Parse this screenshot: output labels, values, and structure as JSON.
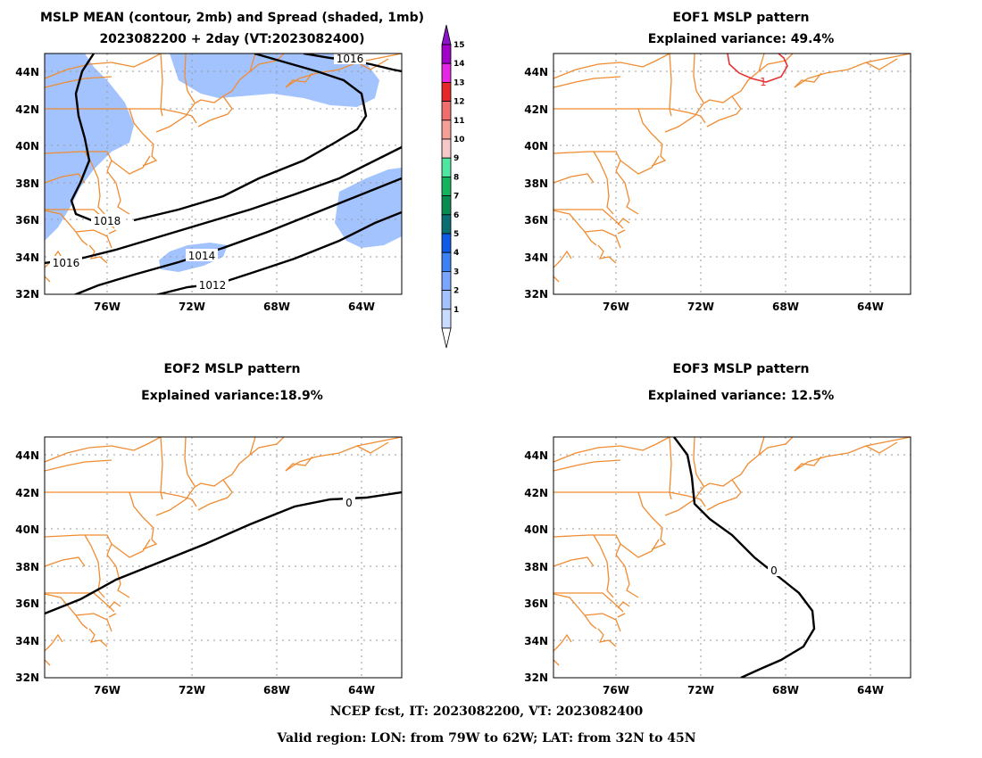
{
  "panels": [
    {
      "id": "p1",
      "title1": "MSLP MEAN (contour, 2mb) and Spread (shaded, 1mb)",
      "title2": "2023082200 + 2day (VT:2023082400)"
    },
    {
      "id": "p2",
      "title1": "EOF1 MSLP pattern",
      "title2": "Explained variance: 49.4%"
    },
    {
      "id": "p3",
      "title1": "EOF2 MSLP pattern",
      "title2": "Explained variance:18.9%"
    },
    {
      "id": "p4",
      "title1": "EOF3 MSLP pattern",
      "title2": "Explained variance: 12.5%"
    }
  ],
  "axes": {
    "lat_labels": [
      "32N",
      "34N",
      "36N",
      "38N",
      "40N",
      "42N",
      "44N"
    ],
    "lon_labels": [
      "76W",
      "72W",
      "68W",
      "64W"
    ]
  },
  "colorbar": {
    "labels": [
      "1",
      "2",
      "3",
      "4",
      "5",
      "6",
      "7",
      "8",
      "9",
      "10",
      "11",
      "12",
      "13",
      "14",
      "15"
    ],
    "colors": [
      "#c9dcff",
      "#a3c3ff",
      "#7ba6ff",
      "#3c82f5",
      "#0f5ae6",
      "#0a6e73",
      "#0a8c50",
      "#14b45f",
      "#50e6a0",
      "#f6c8c8",
      "#f5a096",
      "#f06e6e",
      "#e62828",
      "#e626e6",
      "#a000c8"
    ],
    "bottom_color": "#ffffff",
    "top_color": "#8c14c8"
  },
  "contour_labels": {
    "p1": [
      "1016",
      "1018",
      "1016",
      "1014",
      "1012"
    ],
    "p2": [
      "1"
    ],
    "p3": [
      "0"
    ],
    "p4": [
      "0"
    ]
  },
  "footer": {
    "line1": "NCEP fcst, IT: 2023082200, VT: 2023082400",
    "line2": "Valid region: LON: from 79W to 62W; LAT: from 32N to 45N"
  },
  "colors": {
    "coast": "#f08c32",
    "spread_shade": "#a3c3ff",
    "eof1_contour": "#e63232",
    "mean_contour": "#000000"
  }
}
